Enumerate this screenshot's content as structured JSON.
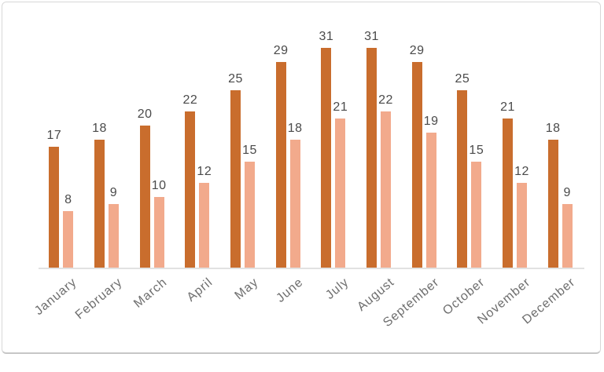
{
  "card": {
    "background": "#ffffff",
    "border_color": "#d8d8d8",
    "bottom_edge_color": "#c6c6c6"
  },
  "chart_data": {
    "type": "bar",
    "title": "",
    "xlabel": "",
    "ylabel": "",
    "categories": [
      "January",
      "February",
      "March",
      "April",
      "May",
      "June",
      "July",
      "August",
      "September",
      "October",
      "November",
      "December"
    ],
    "series": [
      {
        "name": "series-1",
        "color": "#c96d2d",
        "values": [
          17,
          18,
          20,
          22,
          25,
          29,
          31,
          31,
          29,
          25,
          21,
          18
        ]
      },
      {
        "name": "series-2",
        "color": "#f2aa8c",
        "values": [
          8,
          9,
          10,
          12,
          15,
          18,
          21,
          22,
          19,
          15,
          12,
          9
        ]
      }
    ],
    "ylim": [
      0,
      31
    ],
    "grid": false,
    "legend": "none",
    "data_labels": true,
    "value_label_color": "#4a4a4a",
    "axis_label_color": "#6e6e6e",
    "axis_line_color": "#e2e2e2",
    "x_tick_rotation_deg": -40
  }
}
